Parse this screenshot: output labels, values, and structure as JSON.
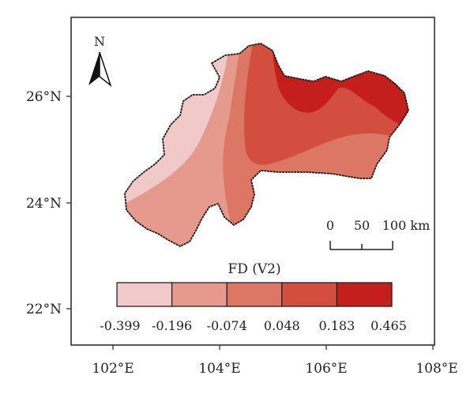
{
  "map": {
    "north_arrow_label": "N",
    "x_ticks": [
      "102°E",
      "104°E",
      "106°E",
      "108°E"
    ],
    "y_ticks": [
      "26°N",
      "24°N",
      "22°N"
    ],
    "scale_bar": {
      "labels": [
        "0",
        "50",
        "100 km"
      ]
    },
    "legend": {
      "title": "FD (V2)",
      "breaks": [
        "-0.399",
        "-0.196",
        "-0.074",
        "0.048",
        "0.183",
        "0.465"
      ],
      "colors": [
        "#f2c9c9",
        "#e69a8e",
        "#dc7665",
        "#d24e3f",
        "#c41f1c"
      ]
    },
    "zone_colors": {
      "lightest": "#f2c9c9",
      "light": "#e69a8e",
      "mid": "#dc7665",
      "dark": "#d24e3f",
      "darkest": "#c41f1c"
    },
    "border_color": "#1a1a1a",
    "frame_color": "#222222"
  }
}
